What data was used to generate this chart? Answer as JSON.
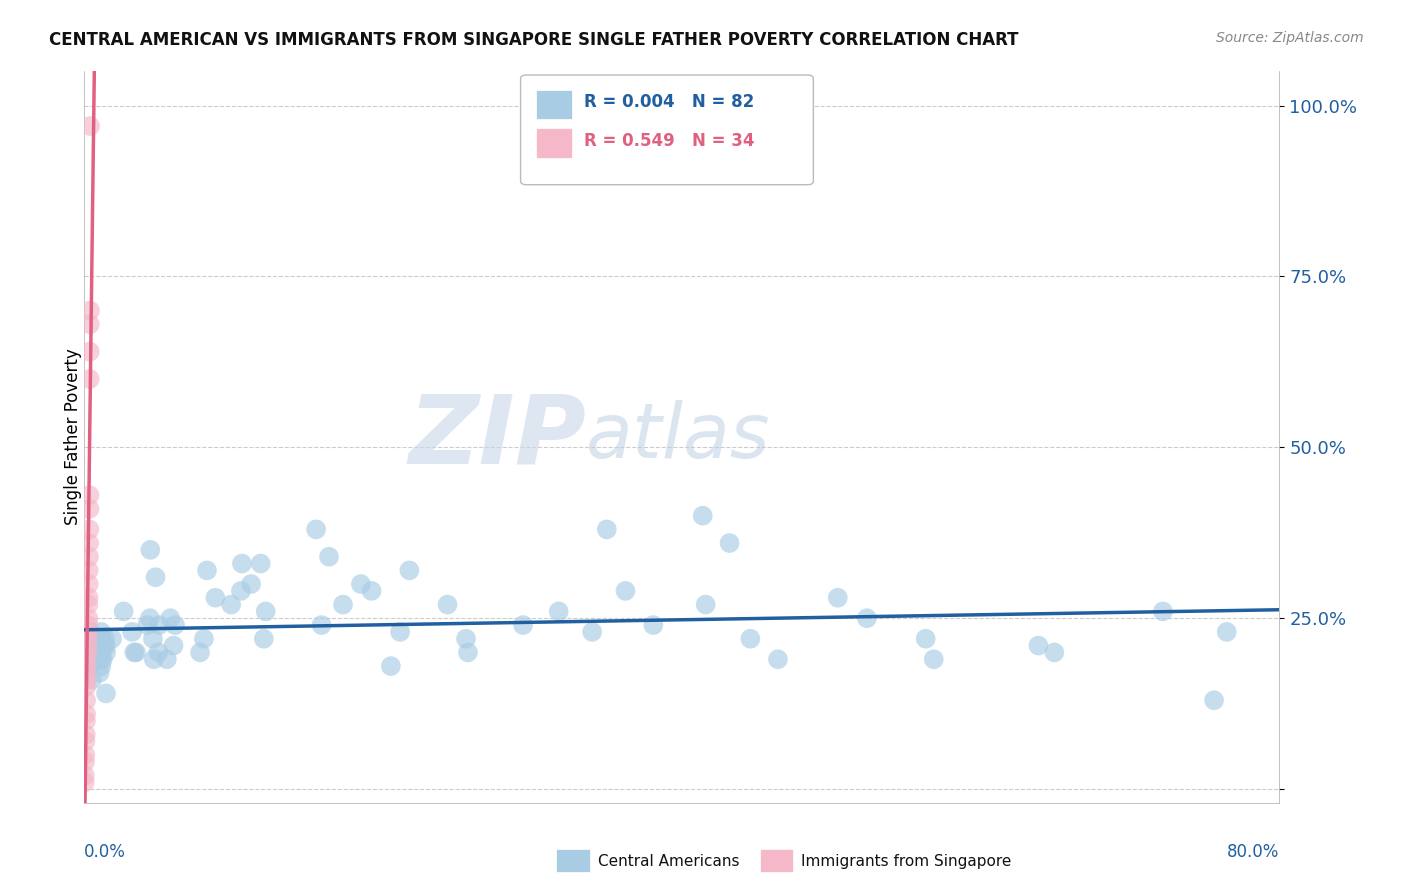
{
  "title": "CENTRAL AMERICAN VS IMMIGRANTS FROM SINGAPORE SINGLE FATHER POVERTY CORRELATION CHART",
  "source": "Source: ZipAtlas.com",
  "ylabel": "Single Father Poverty",
  "xrange": [
    0.0,
    0.8
  ],
  "yrange": [
    -0.02,
    1.05
  ],
  "ytick_values": [
    0.0,
    0.25,
    0.5,
    0.75,
    1.0
  ],
  "ytick_labels": [
    "",
    "25.0%",
    "50.0%",
    "75.0%",
    "100.0%"
  ],
  "legend_R1": "R = 0.004",
  "legend_N1": "N = 82",
  "legend_R2": "R = 0.549",
  "legend_N2": "N = 34",
  "blue_color": "#a8cce4",
  "pink_color": "#f4b8c8",
  "blue_line_color": "#2060a0",
  "pink_line_color": "#e06080",
  "watermark_zip": "ZIP",
  "watermark_atlas": "atlas",
  "background_color": "#ffffff"
}
